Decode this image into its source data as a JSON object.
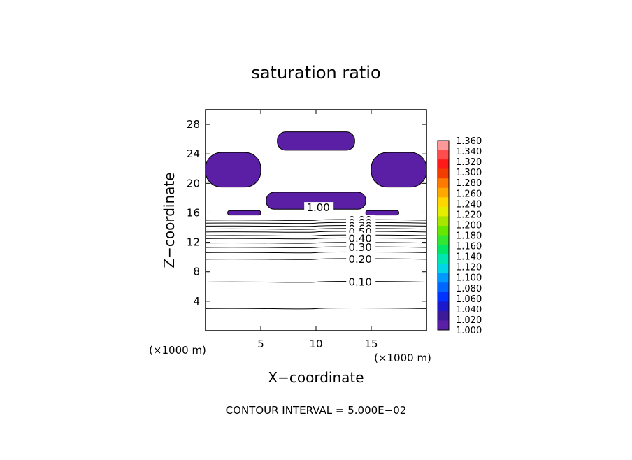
{
  "chart_data": {
    "type": "contour",
    "title": "saturation ratio",
    "xlabel": "X−coordinate",
    "ylabel": "Z−coordinate",
    "x_unit_label": "(×1000 m)",
    "z_unit_label": "(×1000 m)",
    "xlim": [
      0,
      20
    ],
    "ylim": [
      0,
      30
    ],
    "x_ticks": [
      5,
      10,
      15
    ],
    "y_ticks": [
      4,
      8,
      12,
      16,
      20,
      24,
      28
    ],
    "contour_interval_text": "CONTOUR INTERVAL = 5.000E−02",
    "colorbar": {
      "levels": [
        "1.360",
        "1.340",
        "1.320",
        "1.300",
        "1.280",
        "1.260",
        "1.240",
        "1.220",
        "1.200",
        "1.180",
        "1.160",
        "1.140",
        "1.120",
        "1.100",
        "1.080",
        "1.060",
        "1.040",
        "1.020",
        "1.000"
      ],
      "colors": [
        "#ff9999",
        "#ff4d4d",
        "#ff1a1a",
        "#f23c00",
        "#ff7a00",
        "#ffa800",
        "#ffd600",
        "#e6ee00",
        "#a8e600",
        "#66e600",
        "#33e633",
        "#00e666",
        "#00e6b3",
        "#00d6e6",
        "#0099ff",
        "#0066ff",
        "#0033ff",
        "#1a1acc",
        "#3d1a99",
        "#5b1fa6"
      ]
    },
    "contour_labels": [
      {
        "text": "1.00",
        "x": 10.2,
        "z": 16.7
      },
      {
        "text": "0.90",
        "x": 14.0,
        "z": 15.0
      },
      {
        "text": "0.80",
        "x": 14.0,
        "z": 14.6
      },
      {
        "text": "0.70",
        "x": 14.0,
        "z": 14.2
      },
      {
        "text": "0.60",
        "x": 14.0,
        "z": 13.8
      },
      {
        "text": "0.50",
        "x": 14.0,
        "z": 13.4
      },
      {
        "text": "0.40",
        "x": 14.0,
        "z": 12.5
      },
      {
        "text": "0.30",
        "x": 14.0,
        "z": 11.3
      },
      {
        "text": "0.20",
        "x": 14.0,
        "z": 9.7
      },
      {
        "text": "0.10",
        "x": 14.0,
        "z": 6.6
      }
    ],
    "contour_lines_z": [
      3.0,
      6.6,
      9.7,
      10.6,
      11.3,
      11.9,
      12.5,
      12.9,
      13.4,
      13.8,
      14.2,
      14.6,
      15.0
    ],
    "saturated_regions": [
      {
        "name": "top-center cloud",
        "x": [
          6.5,
          13.5
        ],
        "z": [
          24.5,
          27.0
        ]
      },
      {
        "name": "left cloud",
        "x": [
          0,
          5.0
        ],
        "z": [
          19.5,
          24.2
        ]
      },
      {
        "name": "right cloud",
        "x": [
          15.0,
          20
        ],
        "z": [
          19.5,
          24.2
        ]
      },
      {
        "name": "central band",
        "x": [
          5.5,
          14.5
        ],
        "z": [
          16.5,
          18.8
        ]
      },
      {
        "name": "left small",
        "x": [
          2.0,
          5.0
        ],
        "z": [
          15.7,
          16.3
        ]
      },
      {
        "name": "right small",
        "x": [
          14.5,
          17.5
        ],
        "z": [
          15.7,
          16.3
        ]
      }
    ]
  }
}
